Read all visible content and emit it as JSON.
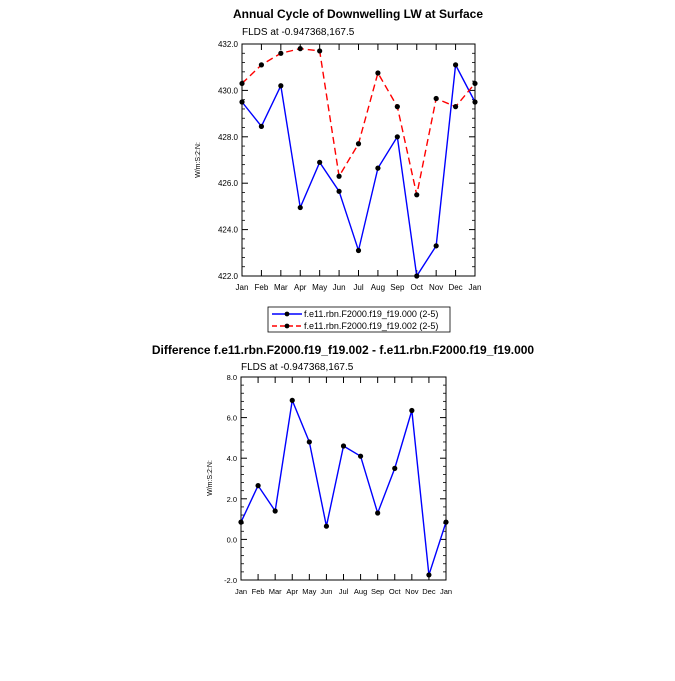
{
  "chart_data": [
    {
      "type": "line",
      "title": "Annual Cycle of Downwelling LW at Surface",
      "subtitle": "FLDS at -0.947368,167.5",
      "ylabel": "W/m:S:2:N:",
      "xlabel": "",
      "categories": [
        "Jan",
        "Feb",
        "Mar",
        "Apr",
        "May",
        "Jun",
        "Jul",
        "Aug",
        "Sep",
        "Oct",
        "Nov",
        "Dec",
        "Jan"
      ],
      "ylim": [
        422.0,
        432.0
      ],
      "yticks": [
        "422.0",
        "424.0",
        "426.0",
        "428.0",
        "430.0",
        "432.0"
      ],
      "ytick_values": [
        422,
        424,
        426,
        428,
        430,
        432
      ],
      "series": [
        {
          "name": "f.e11.rbn.F2000.f19_f19.000 (2-5)",
          "color": "#0000ff",
          "dash": "solid",
          "values": [
            429.5,
            428.45,
            430.2,
            424.95,
            426.9,
            425.65,
            423.1,
            426.65,
            428.0,
            422.0,
            423.3,
            431.1,
            429.5
          ]
        },
        {
          "name": "f.e11.rbn.F2000.f19_f19.002 (2-5)",
          "color": "#ff0000",
          "dash": "dashed",
          "values": [
            430.3,
            431.1,
            431.6,
            431.8,
            431.7,
            426.3,
            427.7,
            430.75,
            429.3,
            425.5,
            429.65,
            429.3,
            430.3
          ]
        }
      ],
      "legend": "below"
    },
    {
      "type": "line",
      "title": "Difference f.e11.rbn.F2000.f19_f19.002 - f.e11.rbn.F2000.f19_f19.000",
      "subtitle": "FLDS at -0.947368,167.5",
      "ylabel": "W/m:S:2:N:",
      "xlabel": "",
      "categories": [
        "Jan",
        "Feb",
        "Mar",
        "Apr",
        "May",
        "Jun",
        "Jul",
        "Aug",
        "Sep",
        "Oct",
        "Nov",
        "Dec",
        "Jan"
      ],
      "ylim": [
        -2.0,
        8.0
      ],
      "yticks": [
        "-2.0",
        "0.0",
        "2.0",
        "4.0",
        "6.0",
        "8.0"
      ],
      "ytick_values": [
        -2,
        0,
        2,
        4,
        6,
        8
      ],
      "series": [
        {
          "name": "",
          "color": "#0000ff",
          "dash": "solid",
          "values": [
            0.85,
            2.65,
            1.4,
            6.85,
            4.8,
            0.65,
            4.6,
            4.1,
            1.3,
            3.5,
            6.35,
            -1.75,
            0.85
          ]
        }
      ]
    }
  ]
}
